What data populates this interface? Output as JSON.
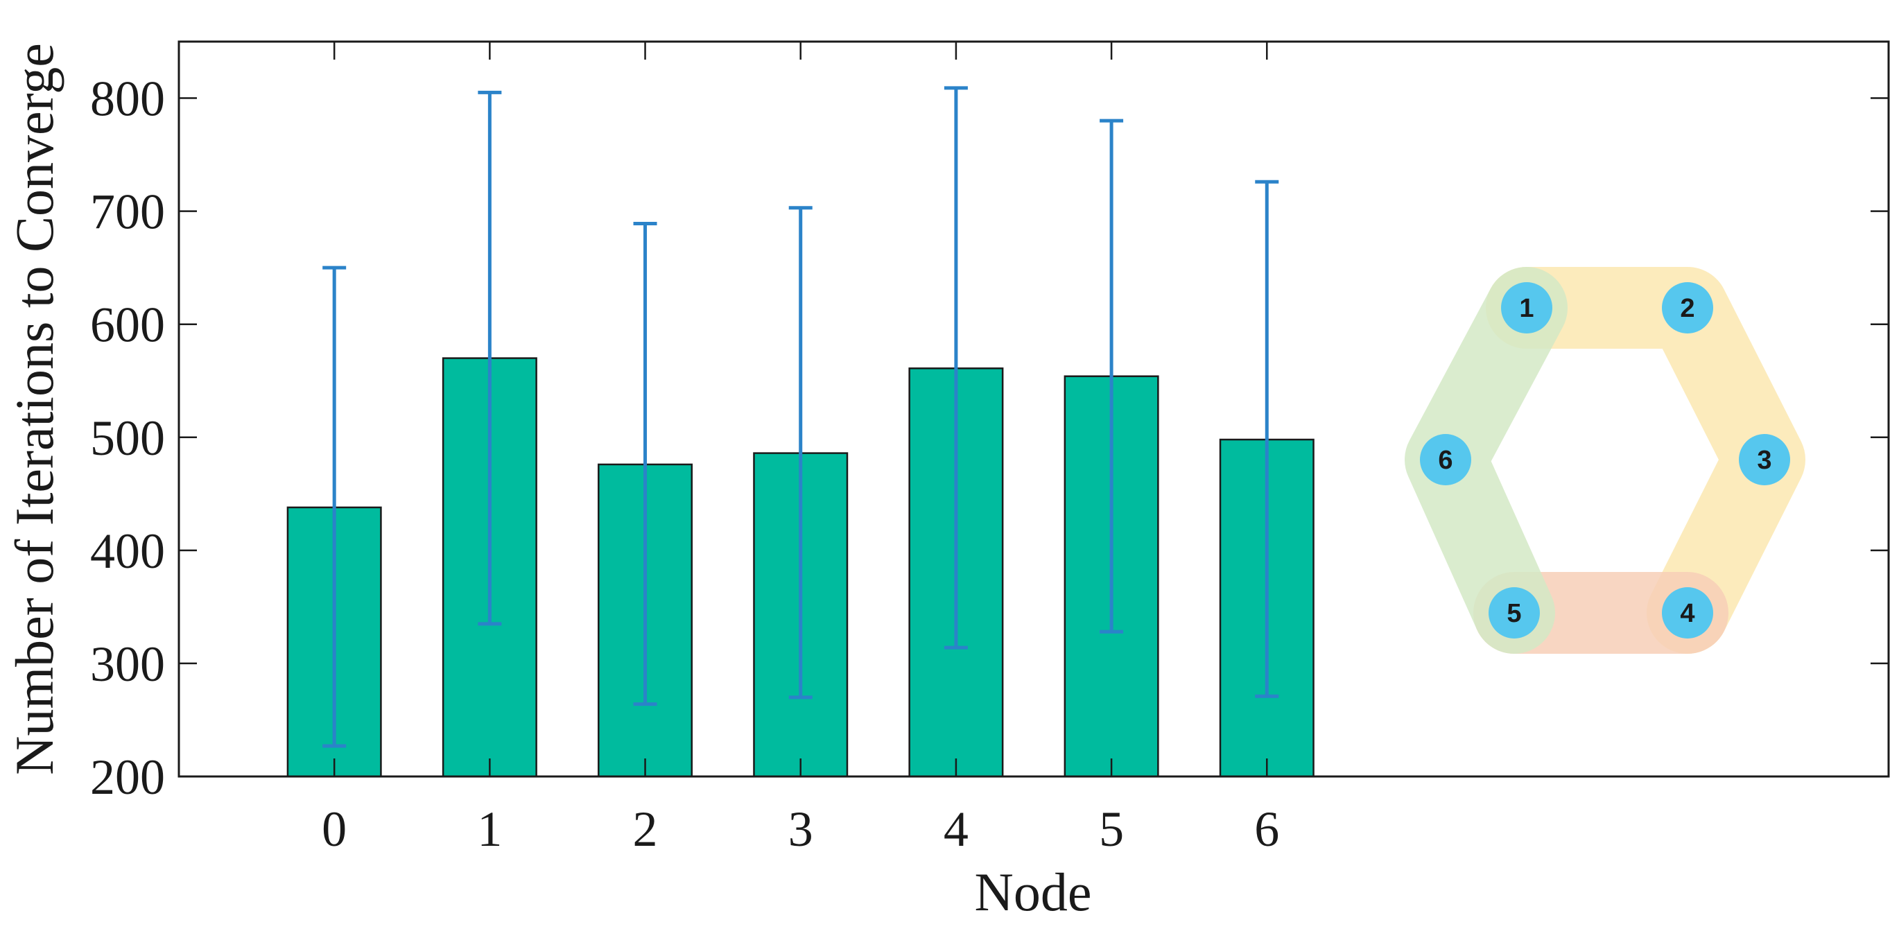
{
  "chart_data": {
    "type": "bar",
    "xlabel": "Node",
    "ylabel": "Number of Iterations to Converge",
    "categories": [
      "0",
      "1",
      "2",
      "3",
      "4",
      "5",
      "6"
    ],
    "values": [
      438,
      570,
      476,
      486,
      561,
      554,
      498
    ],
    "error_low": [
      227,
      335,
      264,
      270,
      314,
      328,
      271
    ],
    "error_high": [
      650,
      805,
      689,
      703,
      809,
      780,
      726
    ],
    "ylim": [
      200,
      850
    ],
    "yticks": [
      200,
      300,
      400,
      500,
      600,
      700,
      800
    ],
    "xlim": [
      -1,
      10
    ],
    "grid": false,
    "colors": {
      "bar": "#00BB9E",
      "bar_edge": "#1a1a1a",
      "errorbar": "#2B83C9"
    }
  },
  "inset": {
    "nodes": [
      "1",
      "2",
      "3",
      "4",
      "5",
      "6"
    ],
    "colors": {
      "node_fill": "#56C7EE",
      "group_green": "#D3E9C6",
      "group_yellow": "#FCE8B0",
      "group_orange": "#F7CFB7"
    }
  }
}
